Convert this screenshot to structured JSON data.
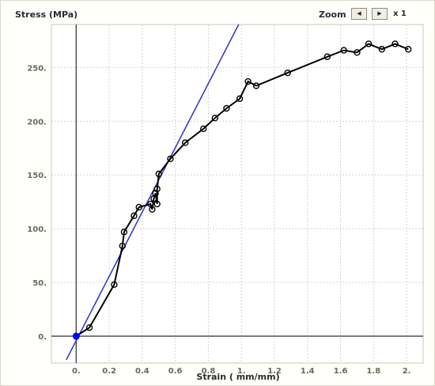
{
  "header": {
    "zoom_label": "Zoom",
    "zoom_prev_icon": "◀",
    "zoom_next_icon": "▶",
    "zoom_level": "x 1"
  },
  "colors": {
    "data_line": "#000000",
    "fit_line": "#2f2fc8",
    "origin_marker": "#0000ff",
    "grid": "#d4d4d4",
    "axes": "#505050",
    "plot_border": "#c8c8b8",
    "tick_text": "#6a6a5a"
  },
  "chart_data": {
    "type": "line",
    "ylabel": "Stress (MPa)",
    "xlabel": "Strain ( mm/mm)",
    "xlim": [
      -0.15,
      2.1
    ],
    "ylim": [
      -25,
      290
    ],
    "x_ticks": [
      0,
      0.2,
      0.4,
      0.6,
      0.8,
      1.0,
      1.2,
      1.4,
      1.6,
      1.8,
      2.0
    ],
    "x_tick_labels": [
      "0.",
      "0.2",
      "0.4",
      "0.6",
      "0.8",
      "1.",
      "1.2",
      "1.4",
      "1.6",
      "1.8",
      "2."
    ],
    "y_ticks": [
      0,
      50,
      100,
      150,
      200,
      250
    ],
    "y_tick_labels": [
      "0.",
      "50.",
      "100.",
      "150.",
      "200.",
      "250."
    ],
    "grid": true,
    "series": [
      {
        "x": [
          0.0,
          0.08,
          0.23,
          0.28,
          0.29,
          0.35,
          0.38,
          0.45,
          0.46,
          0.47,
          0.48,
          0.49,
          0.49,
          0.5,
          0.57,
          0.66,
          0.77,
          0.84,
          0.91,
          0.99,
          1.04,
          1.09,
          1.28,
          1.52,
          1.62,
          1.7,
          1.77,
          1.85,
          1.93,
          2.01
        ],
        "y": [
          0,
          8,
          48,
          84,
          97,
          112,
          120,
          123,
          118,
          128,
          133,
          123,
          137,
          151,
          165,
          180,
          193,
          203,
          212,
          221,
          237,
          233,
          245,
          260,
          266,
          264,
          272,
          267,
          272,
          267
        ],
        "marker": "circle"
      },
      {
        "type": "line",
        "x": [
          -0.06,
          1.0
        ],
        "y": [
          -22,
          295
        ]
      }
    ],
    "highlight_point": {
      "x": 0.0,
      "y": 0
    }
  }
}
